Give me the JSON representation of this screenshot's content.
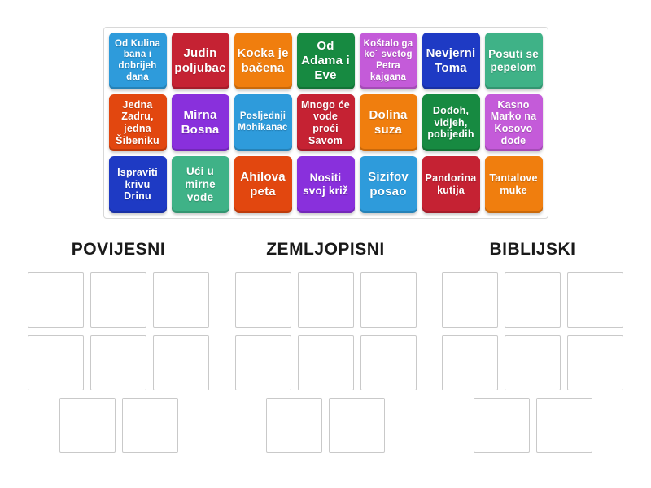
{
  "activity": {
    "type_hint": "group-sort",
    "board": {
      "tiles": [
        {
          "label": "Od Kulina bana i dobrijeh dana",
          "color": "lightblue"
        },
        {
          "label": "Judin poljubac",
          "color": "crimson"
        },
        {
          "label": "Kocka je bačena",
          "color": "orange"
        },
        {
          "label": "Od Adama i Eve",
          "color": "green"
        },
        {
          "label": "Koštalo ga ko´ svetog Petra kajgana",
          "color": "orchid"
        },
        {
          "label": "Nevjerni Toma",
          "color": "royalblue"
        },
        {
          "label": "Posuti se pepelom",
          "color": "seagreen"
        },
        {
          "label": "Jedna Zadru, jedna Šibeniku",
          "color": "orangered"
        },
        {
          "label": "Mirna Bosna",
          "color": "violet"
        },
        {
          "label": "Posljednji Mohikanac",
          "color": "lightblue"
        },
        {
          "label": "Mnogo će vode proći Savom",
          "color": "crimson"
        },
        {
          "label": "Dolina suza",
          "color": "orange"
        },
        {
          "label": "Dođoh, vidjeh, pobijedih",
          "color": "green"
        },
        {
          "label": "Kasno Marko na Kosovo dođe",
          "color": "orchid"
        },
        {
          "label": "Ispraviti krivu Drinu",
          "color": "royalblue"
        },
        {
          "label": "Ući u mirne vode",
          "color": "seagreen"
        },
        {
          "label": "Ahilova peta",
          "color": "orangered"
        },
        {
          "label": "Nositi svoj križ",
          "color": "violet"
        },
        {
          "label": "Sizifov posao",
          "color": "lightblue"
        },
        {
          "label": "Pandorina kutija",
          "color": "crimson"
        },
        {
          "label": "Tantalove muke",
          "color": "orange"
        }
      ]
    },
    "groups": [
      {
        "label": "POVIJESNI",
        "slot_count": 8
      },
      {
        "label": "ZEMLJOPISNI",
        "slot_count": 8
      },
      {
        "label": "BIBLIJSKI",
        "slot_count": 8
      }
    ],
    "palette": {
      "lightblue": "#2E9BDB",
      "crimson": "#C52233",
      "orange": "#F07E0E",
      "green": "#178A41",
      "orchid": "#C45BD9",
      "royalblue": "#1E3AC4",
      "seagreen": "#3FB287",
      "orangered": "#E2470F",
      "violet": "#8930DC"
    },
    "colors": {
      "board_border": "#D8D8D8",
      "slot_border": "#C9C9C9",
      "header_text": "#1A1A1A",
      "tile_text": "#FFFFFF"
    }
  }
}
